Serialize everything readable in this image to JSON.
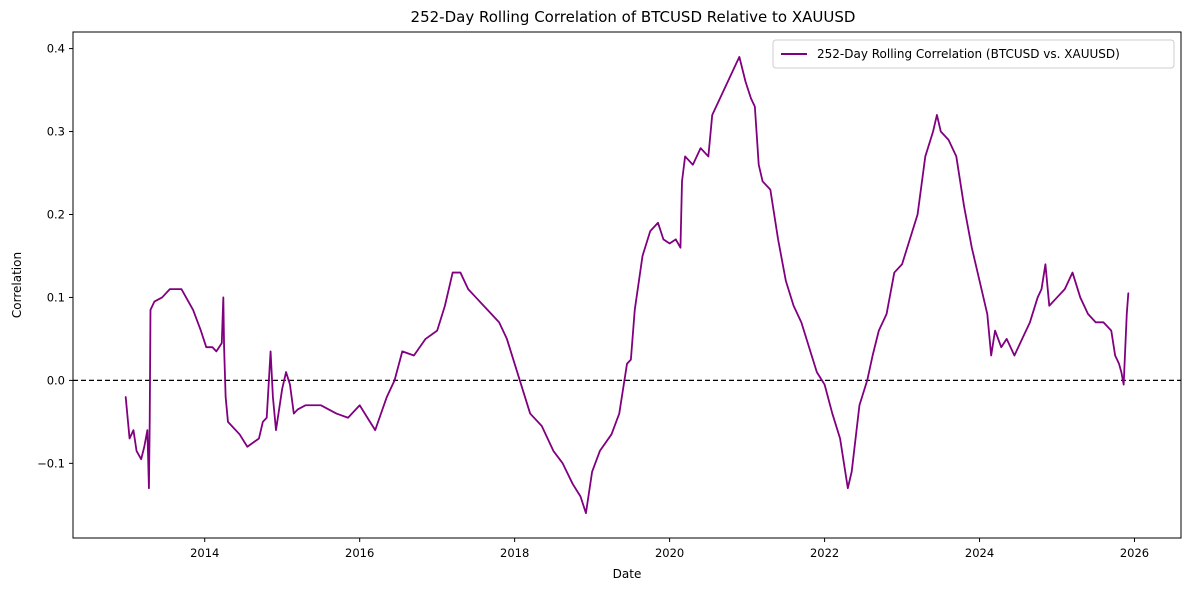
{
  "chart_data": {
    "type": "line",
    "title": "252-Day Rolling Correlation of BTCUSD Relative to XAUUSD",
    "xlabel": "Date",
    "ylabel": "Correlation",
    "xlim": [
      2012.3,
      2026.6
    ],
    "ylim": [
      -0.19,
      0.42
    ],
    "xticks": [
      2014,
      2016,
      2018,
      2020,
      2022,
      2024,
      2026
    ],
    "xtick_labels": [
      "2014",
      "2016",
      "2018",
      "2020",
      "2022",
      "2024",
      "2026"
    ],
    "yticks": [
      -0.1,
      0.0,
      0.1,
      0.2,
      0.3,
      0.4
    ],
    "ytick_labels": [
      "−0.1",
      "0.0",
      "0.1",
      "0.2",
      "0.3",
      "0.4"
    ],
    "reference_line": {
      "y": 0.0,
      "style": "dashed",
      "color": "#000000"
    },
    "legend": {
      "location": "upper right",
      "entries": [
        "252-Day Rolling Correlation (BTCUSD vs. XAUUSD)"
      ]
    },
    "series": [
      {
        "name": "252-Day Rolling Correlation (BTCUSD vs. XAUUSD)",
        "color": "#800080",
        "x": [
          2012.98,
          2013.03,
          2013.08,
          2013.12,
          2013.18,
          2013.22,
          2013.26,
          2013.28,
          2013.29,
          2013.3,
          2013.35,
          2013.45,
          2013.55,
          2013.7,
          2013.85,
          2013.95,
          2014.02,
          2014.1,
          2014.15,
          2014.22,
          2014.24,
          2014.25,
          2014.27,
          2014.3,
          2014.35,
          2014.45,
          2014.55,
          2014.7,
          2014.75,
          2014.8,
          2014.85,
          2014.88,
          2014.92,
          2015.0,
          2015.05,
          2015.1,
          2015.15,
          2015.2,
          2015.3,
          2015.5,
          2015.7,
          2015.85,
          2016.0,
          2016.1,
          2016.2,
          2016.35,
          2016.45,
          2016.55,
          2016.7,
          2016.85,
          2017.0,
          2017.1,
          2017.2,
          2017.3,
          2017.4,
          2017.5,
          2017.6,
          2017.7,
          2017.8,
          2017.9,
          2018.0,
          2018.1,
          2018.2,
          2018.35,
          2018.5,
          2018.62,
          2018.75,
          2018.85,
          2018.92,
          2019.0,
          2019.1,
          2019.25,
          2019.35,
          2019.45,
          2019.5,
          2019.55,
          2019.65,
          2019.75,
          2019.85,
          2019.92,
          2020.0,
          2020.08,
          2020.14,
          2020.16,
          2020.2,
          2020.3,
          2020.4,
          2020.5,
          2020.55,
          2020.65,
          2020.75,
          2020.85,
          2020.9,
          2020.98,
          2021.05,
          2021.1,
          2021.15,
          2021.2,
          2021.3,
          2021.4,
          2021.5,
          2021.6,
          2021.7,
          2021.8,
          2021.9,
          2022.0,
          2022.1,
          2022.2,
          2022.25,
          2022.3,
          2022.35,
          2022.45,
          2022.55,
          2022.62,
          2022.7,
          2022.8,
          2022.9,
          2023.0,
          2023.1,
          2023.2,
          2023.3,
          2023.4,
          2023.45,
          2023.5,
          2023.6,
          2023.7,
          2023.8,
          2023.9,
          2024.0,
          2024.05,
          2024.1,
          2024.15,
          2024.2,
          2024.28,
          2024.35,
          2024.45,
          2024.55,
          2024.65,
          2024.75,
          2024.8,
          2024.85,
          2024.9,
          2025.0,
          2025.1,
          2025.15,
          2025.2,
          2025.3,
          2025.4,
          2025.5,
          2025.6,
          2025.7,
          2025.75,
          2025.8,
          2025.83,
          2025.86,
          2025.9,
          2025.92
        ],
        "y": [
          -0.02,
          -0.07,
          -0.06,
          -0.085,
          -0.095,
          -0.08,
          -0.06,
          -0.13,
          -0.05,
          0.085,
          0.095,
          0.1,
          0.11,
          0.11,
          0.085,
          0.06,
          0.04,
          0.04,
          0.035,
          0.045,
          0.1,
          0.04,
          -0.02,
          -0.05,
          -0.055,
          -0.065,
          -0.08,
          -0.07,
          -0.05,
          -0.045,
          0.035,
          -0.02,
          -0.06,
          -0.01,
          0.01,
          -0.005,
          -0.04,
          -0.035,
          -0.03,
          -0.03,
          -0.04,
          -0.045,
          -0.03,
          -0.045,
          -0.06,
          -0.02,
          0.0,
          0.035,
          0.03,
          0.05,
          0.06,
          0.09,
          0.13,
          0.13,
          0.11,
          0.1,
          0.09,
          0.08,
          0.07,
          0.05,
          0.02,
          -0.01,
          -0.04,
          -0.055,
          -0.085,
          -0.1,
          -0.125,
          -0.14,
          -0.16,
          -0.11,
          -0.085,
          -0.065,
          -0.04,
          0.02,
          0.025,
          0.085,
          0.15,
          0.18,
          0.19,
          0.17,
          0.165,
          0.17,
          0.16,
          0.24,
          0.27,
          0.26,
          0.28,
          0.27,
          0.32,
          0.34,
          0.36,
          0.38,
          0.39,
          0.36,
          0.34,
          0.33,
          0.26,
          0.24,
          0.23,
          0.17,
          0.12,
          0.09,
          0.07,
          0.04,
          0.01,
          -0.005,
          -0.04,
          -0.07,
          -0.1,
          -0.13,
          -0.11,
          -0.03,
          0.0,
          0.03,
          0.06,
          0.08,
          0.13,
          0.14,
          0.17,
          0.2,
          0.27,
          0.3,
          0.32,
          0.3,
          0.29,
          0.27,
          0.21,
          0.16,
          0.12,
          0.1,
          0.08,
          0.03,
          0.06,
          0.04,
          0.05,
          0.03,
          0.05,
          0.07,
          0.1,
          0.11,
          0.14,
          0.09,
          0.1,
          0.11,
          0.12,
          0.13,
          0.1,
          0.08,
          0.07,
          0.07,
          0.06,
          0.03,
          0.02,
          0.01,
          -0.005,
          0.08,
          0.105
        ]
      }
    ]
  }
}
